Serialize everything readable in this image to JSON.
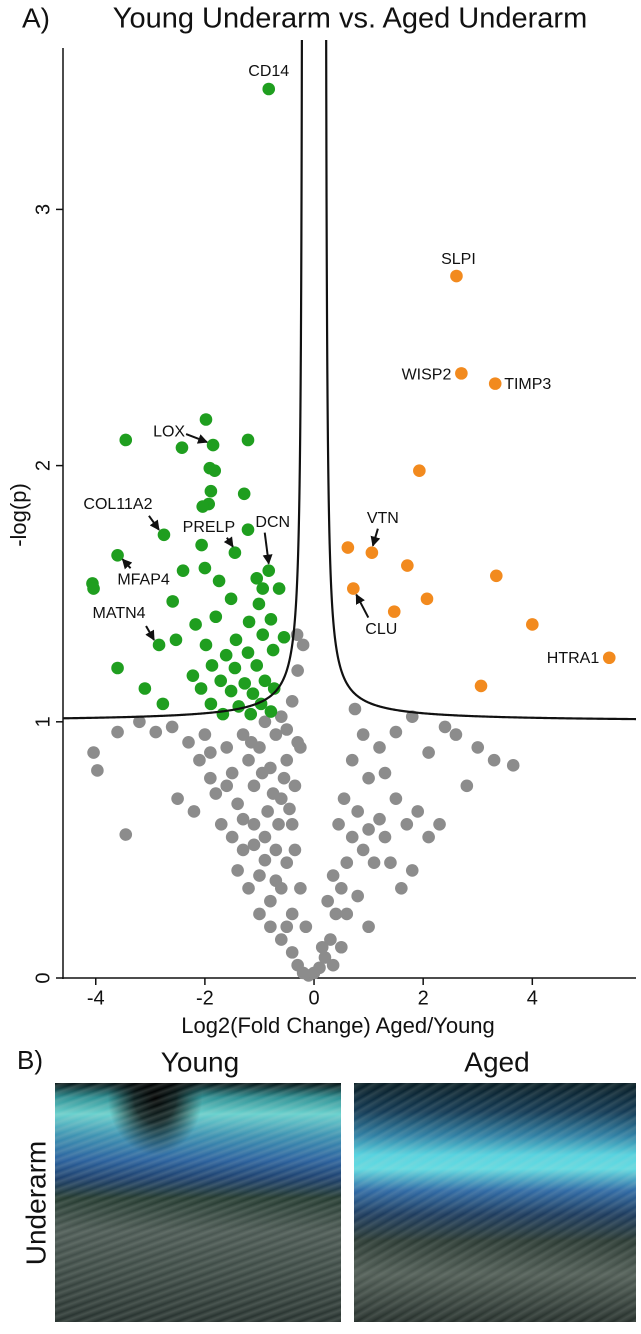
{
  "panel_a": {
    "label": "A)"
  },
  "chart_data": {
    "type": "scatter",
    "title": "Young Underarm vs. Aged Underarm",
    "x_label": "Log2(Fold Change) Aged/Young",
    "y_label": "-log(p)",
    "xlim": [
      -4.6,
      5.9
    ],
    "ylim": [
      0,
      3.63
    ],
    "xticks": [
      -4,
      -2,
      0,
      2,
      4
    ],
    "yticks": [
      0,
      1,
      2,
      3
    ],
    "cutoff": {
      "baseline": 1,
      "asymptote": 0.2,
      "curvature": 0.06
    },
    "series": [
      {
        "color": "#8c8c8c",
        "x": [
          -4.04,
          -3.97,
          -3.6,
          -3.2,
          -2.9,
          -2.6,
          -2.3,
          -2.1,
          -1.9,
          -3.45,
          -2.5,
          -2.2,
          -1.8,
          -1.6,
          -1.5,
          -1.4,
          -1.3,
          -1.2,
          -1.1,
          -1.0,
          -0.9,
          -0.8,
          -0.7,
          -0.6,
          -0.5,
          -0.4,
          -0.3,
          -1.7,
          -1.5,
          -1.3,
          -1.1,
          -0.9,
          -0.7,
          -0.5,
          -1.4,
          -1.2,
          -1.0,
          -0.8,
          -0.6,
          -0.4,
          -1.0,
          -0.8,
          -0.6,
          -0.4,
          -0.3,
          -0.2,
          -0.1,
          0,
          0.1,
          0.2,
          -0.5,
          -0.7,
          -0.9,
          -1.1,
          -1.3,
          -1.6,
          -1.9,
          -2.0,
          -0.6,
          -0.5,
          -0.4,
          -0.3,
          -0.2,
          -0.55,
          -0.45,
          -0.35,
          -0.25,
          -0.15,
          0.3,
          0.4,
          0.5,
          0.6,
          0.7,
          0.8,
          0.35,
          0.45,
          0.55,
          0.25,
          0.9,
          1.0,
          1.1,
          1.2,
          1.3,
          1.5,
          1.7,
          1.9,
          1.4,
          1.6,
          1.8,
          2.1,
          2.3,
          0.7,
          0.9,
          1.2,
          1.5,
          1.8,
          2.1,
          2.4,
          2.6,
          3.0,
          3.3,
          3.65,
          2.8,
          0.75,
          1.0,
          1.3,
          0.6,
          0.8,
          1.0,
          0.5,
          -0.85,
          -0.65,
          -0.95,
          -1.15,
          -0.75,
          -0.35,
          -0.25,
          -0.31,
          0.35,
          0.15
        ],
        "values": [
          0.88,
          0.81,
          0.96,
          1.0,
          0.96,
          0.98,
          0.92,
          0.85,
          0.78,
          0.56,
          0.7,
          0.65,
          0.72,
          0.9,
          0.8,
          0.68,
          0.95,
          0.85,
          0.75,
          0.9,
          1.0,
          0.82,
          0.95,
          0.7,
          0.85,
          0.6,
          0.92,
          0.6,
          0.55,
          0.5,
          0.6,
          0.55,
          0.5,
          0.45,
          0.42,
          0.35,
          0.4,
          0.3,
          0.35,
          0.25,
          0.25,
          0.2,
          0.15,
          0.1,
          0.05,
          0.02,
          0.01,
          0.02,
          0.04,
          0.08,
          0.2,
          0.38,
          0.46,
          0.52,
          0.62,
          0.75,
          0.88,
          0.95,
          1.02,
          0.97,
          1.08,
          1.2,
          1.3,
          0.78,
          0.66,
          0.5,
          0.35,
          0.2,
          0.15,
          0.25,
          0.35,
          0.45,
          0.55,
          0.65,
          0.4,
          0.6,
          0.7,
          0.3,
          0.5,
          0.58,
          0.45,
          0.62,
          0.55,
          0.7,
          0.6,
          0.65,
          0.45,
          0.35,
          0.42,
          0.55,
          0.6,
          0.85,
          0.95,
          0.9,
          0.96,
          1.02,
          0.88,
          0.98,
          0.95,
          0.9,
          0.85,
          0.83,
          0.75,
          1.05,
          0.78,
          0.8,
          0.25,
          0.32,
          0.2,
          0.12,
          0.65,
          0.6,
          0.8,
          0.92,
          0.72,
          0.75,
          0.9,
          1.34,
          0.05,
          0.12
        ]
      },
      {
        "color": "#1f9e1f",
        "x": [
          -0.83,
          -1.85,
          -2.75,
          -1.45,
          -0.83,
          -3.6,
          -2.84,
          -1.98,
          -2.42,
          -3.45,
          -1.21,
          -1.91,
          -1.82,
          -1.89,
          -1.28,
          -1.93,
          -2.04,
          -1.21,
          -2.06,
          -4.06,
          -4.04,
          -3.6,
          -3.1,
          -2.77,
          -2.4,
          -2.59,
          -2.17,
          -2.53,
          -2.0,
          -1.74,
          -1.05,
          -0.94,
          -0.64,
          -1.01,
          -1.52,
          -1.8,
          -1.19,
          -0.79,
          -1.43,
          -0.94,
          -0.55,
          -1.98,
          -1.61,
          -1.21,
          -0.75,
          -1.87,
          -1.45,
          -1.05,
          -2.22,
          -1.71,
          -1.27,
          -0.9,
          -2.07,
          -1.52,
          -1.12,
          -0.73,
          -1.89,
          -1.38,
          -0.97,
          -1.67,
          -1.16,
          -0.79
        ],
        "values": [
          3.47,
          2.08,
          1.73,
          1.66,
          1.59,
          1.65,
          1.3,
          2.18,
          2.07,
          2.1,
          2.1,
          1.99,
          1.98,
          1.9,
          1.89,
          1.85,
          1.84,
          1.75,
          1.69,
          1.54,
          1.52,
          1.21,
          1.13,
          1.07,
          1.59,
          1.47,
          1.38,
          1.32,
          1.6,
          1.55,
          1.56,
          1.52,
          1.52,
          1.46,
          1.48,
          1.41,
          1.39,
          1.4,
          1.32,
          1.34,
          1.33,
          1.3,
          1.26,
          1.27,
          1.28,
          1.22,
          1.21,
          1.22,
          1.18,
          1.16,
          1.15,
          1.16,
          1.13,
          1.12,
          1.11,
          1.13,
          1.07,
          1.06,
          1.07,
          1.03,
          1.03,
          1.04
        ],
        "labels": [
          "CD14",
          "LOX",
          "COL11A2",
          "PRELP",
          "DCN",
          "MFAP4",
          "MATN4",
          null,
          null,
          null,
          null,
          null,
          null,
          null,
          null,
          null,
          null,
          null,
          null,
          null,
          null,
          null,
          null,
          null,
          null,
          null,
          null,
          null,
          null,
          null,
          null,
          null,
          null,
          null,
          null,
          null,
          null,
          null,
          null,
          null,
          null,
          null,
          null,
          null,
          null,
          null,
          null,
          null,
          null,
          null,
          null,
          null,
          null,
          null,
          null,
          null,
          null,
          null,
          null,
          null,
          null,
          null
        ]
      },
      {
        "color": "#f28a1e",
        "x": [
          2.61,
          2.7,
          3.32,
          1.06,
          0.72,
          5.41,
          1.93,
          0.62,
          1.71,
          2.07,
          1.47,
          3.34,
          4.0,
          3.06
        ],
        "values": [
          2.74,
          2.36,
          2.32,
          1.66,
          1.52,
          1.25,
          1.98,
          1.68,
          1.61,
          1.48,
          1.43,
          1.57,
          1.38,
          1.14
        ],
        "labels": [
          "SLPI",
          "WISP2",
          "TIMP3",
          "VTN",
          "CLU",
          "HTRA1",
          null,
          null,
          null,
          null,
          null,
          null,
          null,
          null
        ]
      }
    ]
  },
  "panel_b": {
    "label": "B)",
    "columns": [
      "Young",
      "Aged"
    ],
    "row_label": "Underarm"
  }
}
